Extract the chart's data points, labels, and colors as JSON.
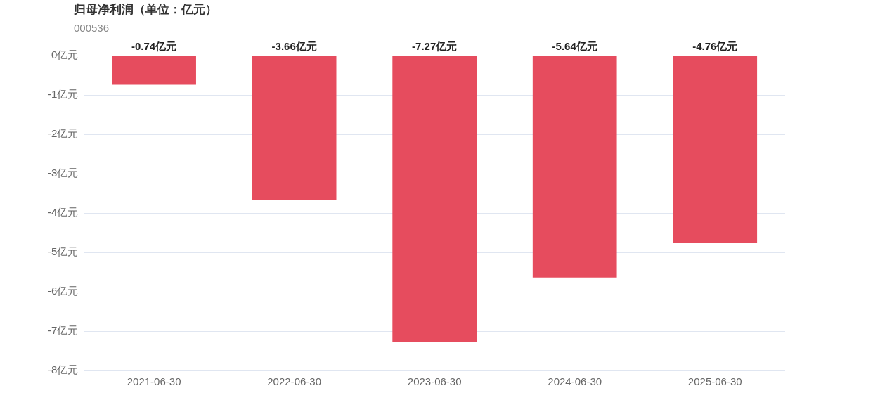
{
  "chart_data": {
    "type": "bar",
    "title": "归母净利润（单位：亿元）",
    "subtitle": "000536",
    "categories": [
      "2021-06-30",
      "2022-06-30",
      "2023-06-30",
      "2024-06-30",
      "2025-06-30"
    ],
    "values": [
      -0.74,
      -3.66,
      -7.27,
      -5.64,
      -4.76
    ],
    "value_labels": [
      "-0.74亿元",
      "-3.66亿元",
      "-7.27亿元",
      "-5.64亿元",
      "-4.76亿元"
    ],
    "color": "#e64c5e",
    "ylim": [
      -8,
      0
    ],
    "yticks": [
      {
        "value": 0,
        "label": "0亿元"
      },
      {
        "value": -1,
        "label": "-1亿元"
      },
      {
        "value": -2,
        "label": "-2亿元"
      },
      {
        "value": -3,
        "label": "-3亿元"
      },
      {
        "value": -4,
        "label": "-4亿元"
      },
      {
        "value": -5,
        "label": "-5亿元"
      },
      {
        "value": -6,
        "label": "-6亿元"
      },
      {
        "value": -7,
        "label": "-7亿元"
      },
      {
        "value": -8,
        "label": "-8亿元"
      }
    ],
    "grid": "y",
    "legend": false
  }
}
